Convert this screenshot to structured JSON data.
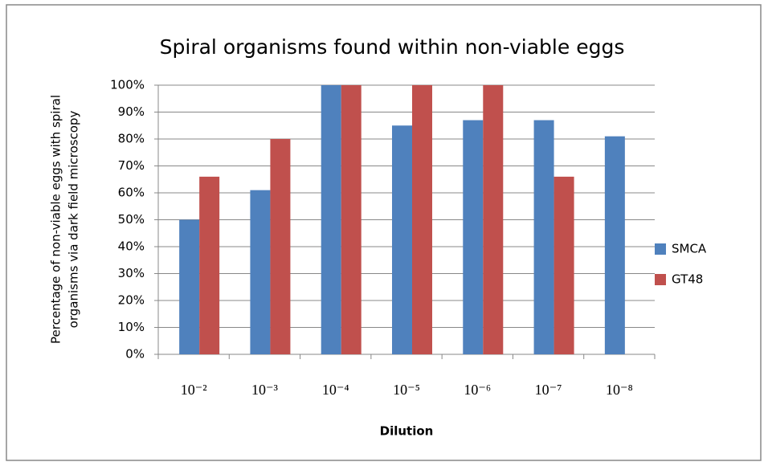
{
  "chart_data": {
    "type": "bar",
    "title": "Spiral organisms found within non-viable eggs",
    "x_label": "Dilution",
    "y_label": [
      "Percentage of non-viable eggs with spiral",
      "organisms via dark field microscopy"
    ],
    "categories": [
      "10⁻²",
      "10⁻³",
      "10⁻⁴",
      "10⁻⁵",
      "10⁻⁶",
      "10⁻⁷",
      "10⁻⁸"
    ],
    "series": [
      {
        "name": "SMCA",
        "color": "#4f81bd",
        "values": [
          50,
          61,
          100,
          85,
          87,
          87,
          81
        ]
      },
      {
        "name": "GT48",
        "color": "#c0504d",
        "values": [
          66,
          80,
          100,
          100,
          100,
          66,
          null
        ]
      }
    ],
    "ylim": [
      0,
      100
    ],
    "yticks": [
      {
        "value": 0,
        "label": "0%"
      },
      {
        "value": 10,
        "label": "10%"
      },
      {
        "value": 20,
        "label": "20%"
      },
      {
        "value": 30,
        "label": "30%"
      },
      {
        "value": 40,
        "label": "40%"
      },
      {
        "value": 50,
        "label": "50%"
      },
      {
        "value": 60,
        "label": "60%"
      },
      {
        "value": 70,
        "label": "70%"
      },
      {
        "value": 80,
        "label": "80%"
      },
      {
        "value": 90,
        "label": "90%"
      },
      {
        "value": 100,
        "label": "100%"
      }
    ],
    "grid": true,
    "legend": "right"
  }
}
